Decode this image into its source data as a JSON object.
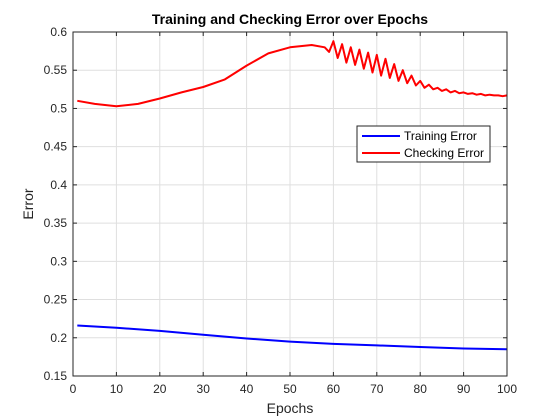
{
  "chart_data": {
    "type": "line",
    "title": "Training and Checking Error over Epochs",
    "xlabel": "Epochs",
    "ylabel": "Error",
    "xlim": [
      0,
      100
    ],
    "ylim": [
      0.15,
      0.6
    ],
    "xticks": [
      0,
      10,
      20,
      30,
      40,
      50,
      60,
      70,
      80,
      90,
      100
    ],
    "yticks": [
      0.15,
      0.2,
      0.25,
      0.3,
      0.35,
      0.4,
      0.45,
      0.5,
      0.55,
      0.6
    ],
    "grid": true,
    "legend_position": "upper right, inside",
    "series": [
      {
        "name": "Training Error",
        "color": "#0000ff",
        "x": [
          1,
          10,
          20,
          30,
          40,
          50,
          60,
          70,
          80,
          90,
          100
        ],
        "y": [
          0.216,
          0.213,
          0.209,
          0.204,
          0.199,
          0.195,
          0.192,
          0.19,
          0.188,
          0.186,
          0.185
        ]
      },
      {
        "name": "Checking Error",
        "color": "#ff0000",
        "x": [
          1,
          5,
          10,
          15,
          20,
          25,
          30,
          35,
          40,
          45,
          50,
          55,
          58,
          59,
          60,
          61,
          62,
          63,
          64,
          65,
          66,
          67,
          68,
          69,
          70,
          71,
          72,
          73,
          74,
          75,
          76,
          77,
          78,
          79,
          80,
          81,
          82,
          83,
          84,
          85,
          86,
          87,
          88,
          89,
          90,
          91,
          92,
          93,
          94,
          95,
          96,
          97,
          98,
          99,
          100
        ],
        "y": [
          0.51,
          0.506,
          0.503,
          0.506,
          0.513,
          0.521,
          0.528,
          0.538,
          0.556,
          0.572,
          0.58,
          0.583,
          0.58,
          0.574,
          0.588,
          0.566,
          0.584,
          0.56,
          0.58,
          0.557,
          0.577,
          0.552,
          0.573,
          0.547,
          0.57,
          0.543,
          0.565,
          0.54,
          0.558,
          0.536,
          0.55,
          0.533,
          0.543,
          0.53,
          0.536,
          0.527,
          0.531,
          0.525,
          0.527,
          0.523,
          0.525,
          0.521,
          0.523,
          0.52,
          0.521,
          0.519,
          0.52,
          0.518,
          0.519,
          0.517,
          0.518,
          0.517,
          0.517,
          0.516,
          0.517
        ]
      }
    ]
  }
}
